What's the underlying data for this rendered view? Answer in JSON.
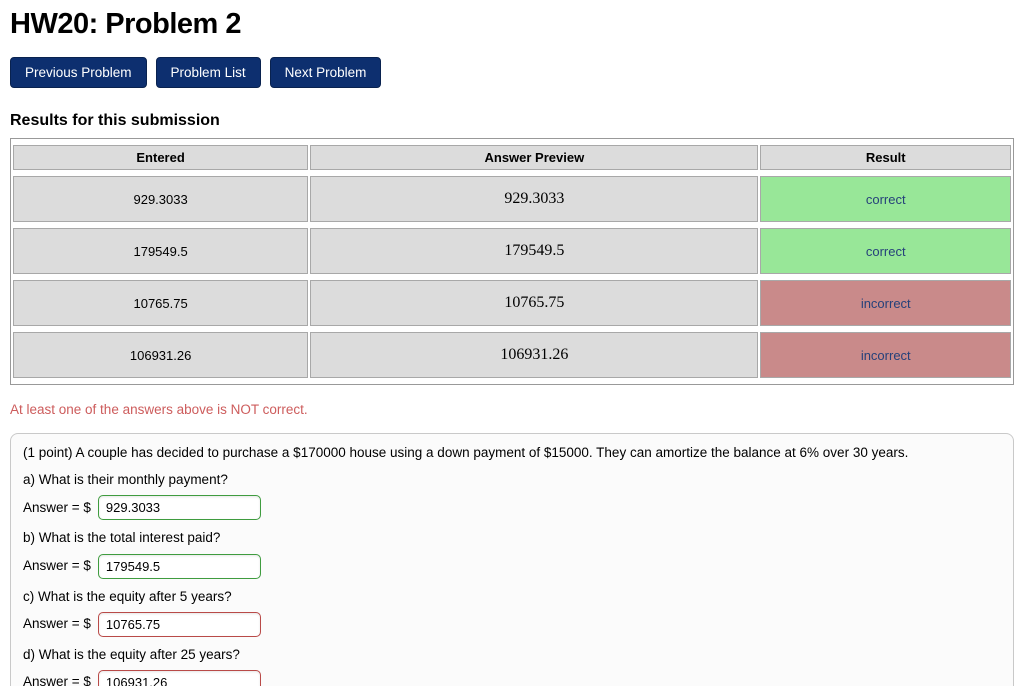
{
  "page": {
    "title": "HW20: Problem 2"
  },
  "nav": {
    "buttons": [
      {
        "label": "Previous Problem"
      },
      {
        "label": "Problem List"
      },
      {
        "label": "Next Problem"
      }
    ]
  },
  "results": {
    "heading": "Results for this submission",
    "columns": [
      "Entered",
      "Answer Preview",
      "Result"
    ],
    "rows": [
      {
        "entered": "929.3033",
        "preview": "929.3033",
        "result": "correct",
        "status": "correct"
      },
      {
        "entered": "179549.5",
        "preview": "179549.5",
        "result": "correct",
        "status": "correct"
      },
      {
        "entered": "10765.75",
        "preview": "10765.75",
        "result": "incorrect",
        "status": "incorrect"
      },
      {
        "entered": "106931.26",
        "preview": "106931.26",
        "result": "incorrect",
        "status": "incorrect"
      }
    ],
    "warning": "At least one of the answers above is NOT correct."
  },
  "problem": {
    "statement": "(1 point) A couple has decided to purchase a $170000 house using a down payment of $15000. They can amortize the balance at 6% over 30 years.",
    "parts": [
      {
        "question": "a) What is their monthly payment?",
        "answer_label": "Answer = $",
        "value": "929.3033",
        "status": "correct"
      },
      {
        "question": "b) What is the total interest paid?",
        "answer_label": "Answer = $",
        "value": "179549.5",
        "status": "correct"
      },
      {
        "question": "c) What is the equity after 5 years?",
        "answer_label": "Answer = $",
        "value": "10765.75",
        "status": "incorrect"
      },
      {
        "question": "d) What is the equity after 25 years?",
        "answer_label": "Answer = $",
        "value": "106931.26",
        "status": "incorrect"
      }
    ]
  },
  "colors": {
    "button_bg": "#0d2f6f",
    "correct_bg": "#98e798",
    "incorrect_bg": "#c98a8a",
    "warning_text": "#cd5c5c",
    "result_text": "#26417a"
  }
}
